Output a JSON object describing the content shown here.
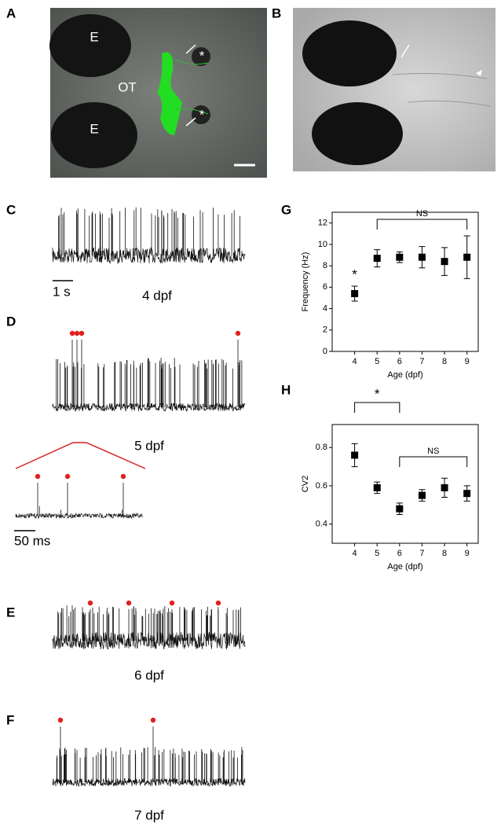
{
  "panel_labels": [
    "A",
    "B",
    "C",
    "D",
    "E",
    "F",
    "G",
    "H"
  ],
  "panel_a": {
    "eye_labels": [
      "E",
      "E"
    ],
    "tectum_label": "OT",
    "asterisks": [
      "*",
      "*"
    ]
  },
  "panel_c": {
    "age": "4 dpf",
    "scale": "1 s"
  },
  "panel_d": {
    "age": "5 dpf",
    "inset_scale": "50 ms"
  },
  "panel_e": {
    "age": "6 dpf"
  },
  "panel_f": {
    "age": "7 dpf"
  },
  "chart_data": [
    {
      "type": "errorbar",
      "x_label": "Age (dpf)",
      "y_label": "Frequency (Hz)",
      "color": "#000000",
      "x": [
        4,
        5,
        6,
        7,
        8,
        9
      ],
      "values": [
        5.4,
        8.7,
        8.8,
        8.8,
        8.4,
        8.8
      ],
      "errors": [
        0.7,
        0.8,
        0.5,
        1.0,
        1.3,
        2.0
      ],
      "xlim": [
        3,
        9.5
      ],
      "xticks": [
        4,
        5,
        6,
        7,
        8,
        9
      ],
      "ylim": [
        0,
        13
      ],
      "yticks": [
        0,
        2,
        4,
        6,
        8,
        10,
        12
      ],
      "annotations": [
        {
          "text": "*",
          "x": [
            4
          ]
        },
        {
          "text": "NS",
          "x": [
            5,
            9
          ]
        }
      ]
    },
    {
      "type": "errorbar",
      "x_label": "Age (dpf)",
      "y_label": "CV2",
      "color": "#000000",
      "x": [
        4,
        5,
        6,
        7,
        8,
        9
      ],
      "values": [
        0.76,
        0.59,
        0.48,
        0.55,
        0.59,
        0.56
      ],
      "errors": [
        0.06,
        0.03,
        0.03,
        0.03,
        0.05,
        0.04
      ],
      "xlim": [
        3,
        9.5
      ],
      "xticks": [
        4,
        5,
        6,
        7,
        8,
        9
      ],
      "ylim": [
        0.3,
        0.92
      ],
      "yticks": [
        0.4,
        0.6,
        0.8
      ],
      "annotations": [
        {
          "text": "*",
          "x": [
            4,
            6
          ]
        },
        {
          "text": "NS",
          "x": [
            6,
            9
          ]
        }
      ]
    }
  ]
}
